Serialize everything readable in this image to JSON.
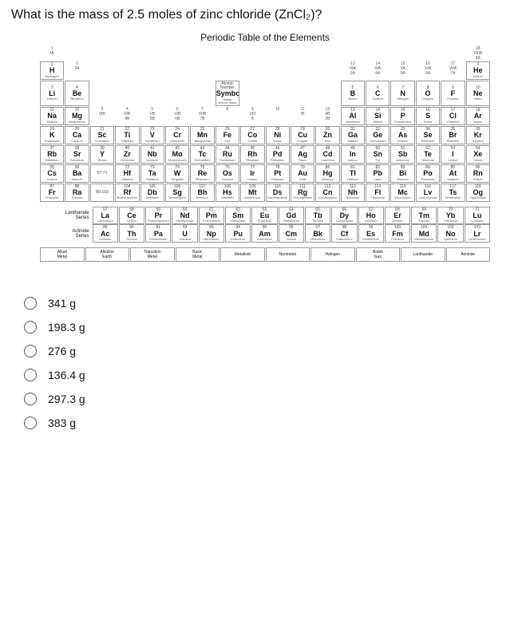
{
  "question": "What is the mass of 2.5 moles of zinc chloride (ZnCl₂)?",
  "table_title": "Periodic Table of the Elements",
  "key": {
    "symbol_label": "Symbol",
    "name_label": "Name",
    "mass_label": "Atomic Mass",
    "num_label": "Atomic Number"
  },
  "group_top": [
    "1\nIA",
    "",
    "",
    "",
    "",
    "",
    "",
    "",
    "",
    "",
    "",
    "",
    "",
    "",
    "",
    "",
    "",
    "18\nVIIIA\n8A"
  ],
  "group_sub": [
    "",
    "2\n2A",
    "",
    "",
    "",
    "",
    "",
    "",
    "",
    "",
    "",
    "",
    "13\nIIIA\n3A",
    "14\nIVA\n4A",
    "15\nVA\n5A",
    "16\nVIA\n6A",
    "17\nVIIA\n7A",
    ""
  ],
  "group_mid": [
    "",
    "",
    "3\nIIIB",
    "4\nIVB\n4B",
    "5\nVB\n5B",
    "6\nVIB\n6B",
    "7\nVIIB\n7B",
    "8",
    "9\nVIII\n8",
    "10",
    "11\nIB",
    "12\nIIB\n2B",
    "",
    "",
    "",
    "",
    "",
    ""
  ],
  "elements": [
    [
      {
        "n": 1,
        "s": "H",
        "m": "Hydrogen"
      },
      null,
      null,
      null,
      null,
      null,
      null,
      null,
      null,
      null,
      null,
      null,
      null,
      null,
      null,
      null,
      null,
      {
        "n": 2,
        "s": "He",
        "m": "Helium"
      }
    ],
    [
      {
        "n": 3,
        "s": "Li",
        "m": "Lithium"
      },
      {
        "n": 4,
        "s": "Be",
        "m": "Beryllium"
      },
      null,
      null,
      null,
      null,
      null,
      null,
      null,
      null,
      null,
      null,
      {
        "n": 5,
        "s": "B",
        "m": "Boron"
      },
      {
        "n": 6,
        "s": "C",
        "m": "Carbon"
      },
      {
        "n": 7,
        "s": "N",
        "m": "Nitrogen"
      },
      {
        "n": 8,
        "s": "O",
        "m": "Oxygen"
      },
      {
        "n": 9,
        "s": "F",
        "m": "Fluorine"
      },
      {
        "n": 10,
        "s": "Ne",
        "m": "Neon"
      }
    ],
    [
      {
        "n": 11,
        "s": "Na",
        "m": "Sodium"
      },
      {
        "n": 12,
        "s": "Mg",
        "m": "Magnesium"
      },
      null,
      null,
      null,
      null,
      null,
      null,
      null,
      null,
      null,
      null,
      {
        "n": 13,
        "s": "Al",
        "m": "Aluminum"
      },
      {
        "n": 14,
        "s": "Si",
        "m": "Silicon"
      },
      {
        "n": 15,
        "s": "P",
        "m": "Phosphorus"
      },
      {
        "n": 16,
        "s": "S",
        "m": "Sulfur"
      },
      {
        "n": 17,
        "s": "Cl",
        "m": "Chlorine"
      },
      {
        "n": 18,
        "s": "Ar",
        "m": "Argon"
      }
    ],
    [
      {
        "n": 19,
        "s": "K",
        "m": "Potassium"
      },
      {
        "n": 20,
        "s": "Ca",
        "m": "Calcium"
      },
      {
        "n": 21,
        "s": "Sc",
        "m": "Scandium"
      },
      {
        "n": 22,
        "s": "Ti",
        "m": "Titanium"
      },
      {
        "n": 23,
        "s": "V",
        "m": "Vanadium"
      },
      {
        "n": 24,
        "s": "Cr",
        "m": "Chromium"
      },
      {
        "n": 25,
        "s": "Mn",
        "m": "Manganese"
      },
      {
        "n": 26,
        "s": "Fe",
        "m": "Iron"
      },
      {
        "n": 27,
        "s": "Co",
        "m": "Cobalt"
      },
      {
        "n": 28,
        "s": "Ni",
        "m": "Nickel"
      },
      {
        "n": 29,
        "s": "Cu",
        "m": "Copper"
      },
      {
        "n": 30,
        "s": "Zn",
        "m": "Zinc"
      },
      {
        "n": 31,
        "s": "Ga",
        "m": "Gallium"
      },
      {
        "n": 32,
        "s": "Ge",
        "m": "Germanium"
      },
      {
        "n": 33,
        "s": "As",
        "m": "Arsenic"
      },
      {
        "n": 34,
        "s": "Se",
        "m": "Selenium"
      },
      {
        "n": 35,
        "s": "Br",
        "m": "Bromine"
      },
      {
        "n": 36,
        "s": "Kr",
        "m": "Krypton"
      }
    ],
    [
      {
        "n": 37,
        "s": "Rb",
        "m": "Rubidium"
      },
      {
        "n": 38,
        "s": "Sr",
        "m": "Strontium"
      },
      {
        "n": 39,
        "s": "Y",
        "m": "Yttrium"
      },
      {
        "n": 40,
        "s": "Zr",
        "m": "Zirconium"
      },
      {
        "n": 41,
        "s": "Nb",
        "m": "Niobium"
      },
      {
        "n": 42,
        "s": "Mo",
        "m": "Molybdenum"
      },
      {
        "n": 43,
        "s": "Tc",
        "m": "Technetium"
      },
      {
        "n": 44,
        "s": "Ru",
        "m": "Ruthenium"
      },
      {
        "n": 45,
        "s": "Rh",
        "m": "Rhodium"
      },
      {
        "n": 46,
        "s": "Pd",
        "m": "Palladium"
      },
      {
        "n": 47,
        "s": "Ag",
        "m": "Silver"
      },
      {
        "n": 48,
        "s": "Cd",
        "m": "Cadmium"
      },
      {
        "n": 49,
        "s": "In",
        "m": "Indium"
      },
      {
        "n": 50,
        "s": "Sn",
        "m": "Tin"
      },
      {
        "n": 51,
        "s": "Sb",
        "m": "Antimony"
      },
      {
        "n": 52,
        "s": "Te",
        "m": "Tellurium"
      },
      {
        "n": 53,
        "s": "I",
        "m": "Iodine"
      },
      {
        "n": 54,
        "s": "Xe",
        "m": "Xenon"
      }
    ],
    [
      {
        "n": 55,
        "s": "Cs",
        "m": "Cesium"
      },
      {
        "n": 56,
        "s": "Ba",
        "m": "Barium"
      },
      {
        "n": "57-71",
        "s": "",
        "m": ""
      },
      {
        "n": 72,
        "s": "Hf",
        "m": "Hafnium"
      },
      {
        "n": 73,
        "s": "Ta",
        "m": "Tantalum"
      },
      {
        "n": 74,
        "s": "W",
        "m": "Tungsten"
      },
      {
        "n": 75,
        "s": "Re",
        "m": "Rhenium"
      },
      {
        "n": 76,
        "s": "Os",
        "m": "Osmium"
      },
      {
        "n": 77,
        "s": "Ir",
        "m": "Iridium"
      },
      {
        "n": 78,
        "s": "Pt",
        "m": "Platinum"
      },
      {
        "n": 79,
        "s": "Au",
        "m": "Gold"
      },
      {
        "n": 80,
        "s": "Hg",
        "m": "Mercury"
      },
      {
        "n": 81,
        "s": "Tl",
        "m": "Thallium"
      },
      {
        "n": 82,
        "s": "Pb",
        "m": "Lead"
      },
      {
        "n": 83,
        "s": "Bi",
        "m": "Bismuth"
      },
      {
        "n": 84,
        "s": "Po",
        "m": "Polonium"
      },
      {
        "n": 85,
        "s": "At",
        "m": "Astatine"
      },
      {
        "n": 86,
        "s": "Rn",
        "m": "Radon"
      }
    ],
    [
      {
        "n": 87,
        "s": "Fr",
        "m": "Francium"
      },
      {
        "n": 88,
        "s": "Ra",
        "m": "Radium"
      },
      {
        "n": "89-103",
        "s": "",
        "m": ""
      },
      {
        "n": 104,
        "s": "Rf",
        "m": "Rutherfordium"
      },
      {
        "n": 105,
        "s": "Db",
        "m": "Dubnium"
      },
      {
        "n": 106,
        "s": "Sg",
        "m": "Seaborgium"
      },
      {
        "n": 107,
        "s": "Bh",
        "m": "Bohrium"
      },
      {
        "n": 108,
        "s": "Hs",
        "m": "Hassium"
      },
      {
        "n": 109,
        "s": "Mt",
        "m": "Meitnerium"
      },
      {
        "n": 110,
        "s": "Ds",
        "m": "Darmstadtium"
      },
      {
        "n": 111,
        "s": "Rg",
        "m": "Roentgenium"
      },
      {
        "n": 112,
        "s": "Cn",
        "m": "Copernicium"
      },
      {
        "n": 113,
        "s": "Nh",
        "m": "Nihonium"
      },
      {
        "n": 114,
        "s": "Fl",
        "m": "Flerovium"
      },
      {
        "n": 115,
        "s": "Mc",
        "m": "Moscovium"
      },
      {
        "n": 116,
        "s": "Lv",
        "m": "Livermorium"
      },
      {
        "n": 117,
        "s": "Ts",
        "m": "Tennessine"
      },
      {
        "n": 118,
        "s": "Og",
        "m": "Oganesson"
      }
    ]
  ],
  "lanth_label": "Lanthanide\nSeries",
  "act_label": "Actinide\nSeries",
  "lanth": [
    {
      "n": 57,
      "s": "La",
      "m": "Lanthanum"
    },
    {
      "n": 58,
      "s": "Ce",
      "m": "Cerium"
    },
    {
      "n": 59,
      "s": "Pr",
      "m": "Praseodymium"
    },
    {
      "n": 60,
      "s": "Nd",
      "m": "Neodymium"
    },
    {
      "n": 61,
      "s": "Pm",
      "m": "Promethium"
    },
    {
      "n": 62,
      "s": "Sm",
      "m": "Samarium"
    },
    {
      "n": 63,
      "s": "Eu",
      "m": "Europium"
    },
    {
      "n": 64,
      "s": "Gd",
      "m": "Gadolinium"
    },
    {
      "n": 65,
      "s": "Tb",
      "m": "Terbium"
    },
    {
      "n": 66,
      "s": "Dy",
      "m": "Dysprosium"
    },
    {
      "n": 67,
      "s": "Ho",
      "m": "Holmium"
    },
    {
      "n": 68,
      "s": "Er",
      "m": "Erbium"
    },
    {
      "n": 69,
      "s": "Tm",
      "m": "Thulium"
    },
    {
      "n": 70,
      "s": "Yb",
      "m": "Ytterbium"
    },
    {
      "n": 71,
      "s": "Lu",
      "m": "Lutetium"
    }
  ],
  "act": [
    {
      "n": 89,
      "s": "Ac",
      "m": "Actinium"
    },
    {
      "n": 90,
      "s": "Th",
      "m": "Thorium"
    },
    {
      "n": 91,
      "s": "Pa",
      "m": "Protactinium"
    },
    {
      "n": 92,
      "s": "U",
      "m": "Uranium"
    },
    {
      "n": 93,
      "s": "Np",
      "m": "Neptunium"
    },
    {
      "n": 94,
      "s": "Pu",
      "m": "Plutonium"
    },
    {
      "n": 95,
      "s": "Am",
      "m": "Americium"
    },
    {
      "n": 96,
      "s": "Cm",
      "m": "Curium"
    },
    {
      "n": 97,
      "s": "Bk",
      "m": "Berkelium"
    },
    {
      "n": 98,
      "s": "Cf",
      "m": "Californium"
    },
    {
      "n": 99,
      "s": "Es",
      "m": "Einsteinium"
    },
    {
      "n": 100,
      "s": "Fm",
      "m": "Fermium"
    },
    {
      "n": 101,
      "s": "Md",
      "m": "Mendelevium"
    },
    {
      "n": 102,
      "s": "No",
      "m": "Nobelium"
    },
    {
      "n": 103,
      "s": "Lr",
      "m": "Lawrencium"
    }
  ],
  "legend": [
    "Alkali\nMetal",
    "Alkaline\nEarth",
    "Transition\nMetal",
    "Basic\nMetal",
    "Metalloid",
    "Nonmetal",
    "Halogen",
    "Noble\nGas",
    "Lanthanide",
    "Actinide"
  ],
  "options": [
    "341 g",
    "198.3 g",
    "276 g",
    "136.4 g",
    "297.3 g",
    "383 g"
  ]
}
